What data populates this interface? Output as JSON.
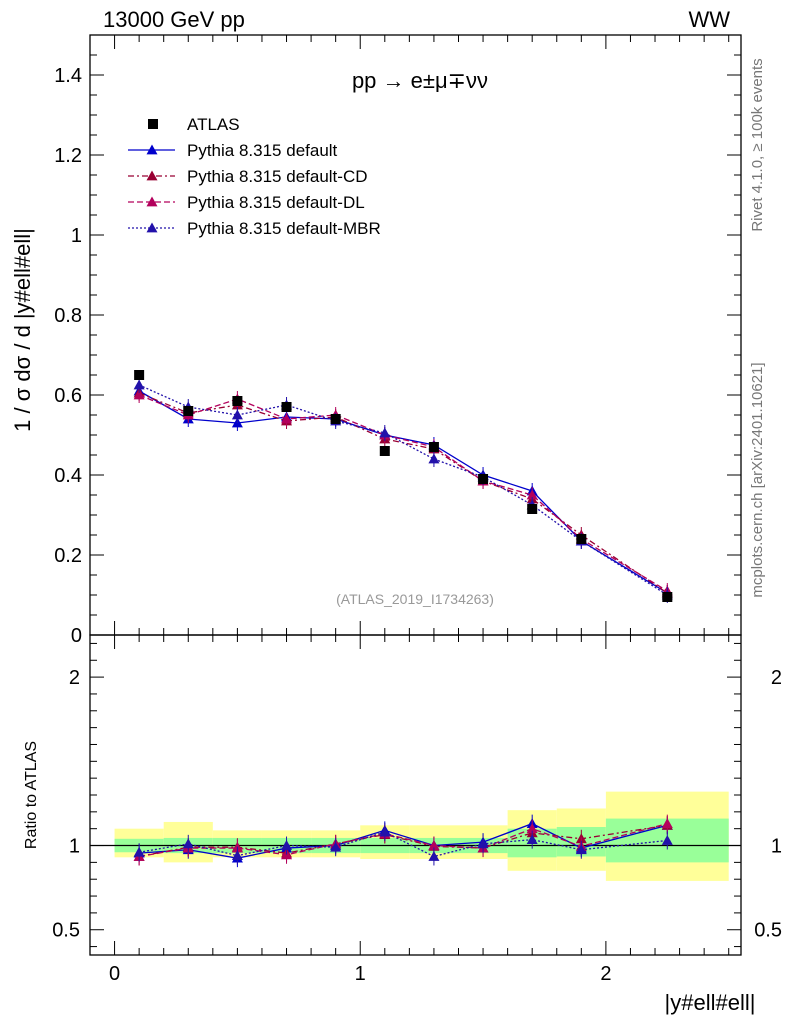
{
  "header": {
    "energy_label": "13000 GeV pp",
    "process_tag": "WW"
  },
  "side_labels": {
    "rivet": "Rivet 4.1.0, ≥ 100k events",
    "mcplots": "mcplots.cern.ch [arXiv:2401.10621]"
  },
  "colors": {
    "data": "#000000",
    "default": "#0000cc",
    "cd": "#990033",
    "dl": "#b3005c",
    "mbr": "#2211aa",
    "band_inner": "#99ff99",
    "band_outer": "#ffff99"
  },
  "chart_data": [
    {
      "type": "line",
      "title": "pp → e±μ∓νν",
      "ylabel": "1 / σ dσ / d |y#ell#ell|",
      "xlabel": "|y#ell#ell|",
      "analysis_tag": "(ATLAS_2019_I1734263)",
      "xlim": [
        -0.1,
        2.55
      ],
      "ylim": [
        0,
        1.5
      ],
      "yticks": [
        0,
        0.2,
        0.4,
        0.6,
        0.8,
        1,
        1.2,
        1.4
      ],
      "ytick_labels": [
        "0",
        "0.2",
        "0.4",
        "0.6",
        "0.8",
        "1",
        "1.2",
        "1.4"
      ],
      "x": [
        0.1,
        0.3,
        0.5,
        0.7,
        0.9,
        1.1,
        1.3,
        1.5,
        1.7,
        1.9,
        2.25
      ],
      "x_bins": [
        [
          0,
          0.2
        ],
        [
          0.2,
          0.4
        ],
        [
          0.4,
          0.6
        ],
        [
          0.6,
          0.8
        ],
        [
          0.8,
          1.0
        ],
        [
          1.0,
          1.2
        ],
        [
          1.2,
          1.4
        ],
        [
          1.4,
          1.6
        ],
        [
          1.6,
          1.8
        ],
        [
          1.8,
          2.0
        ],
        [
          2.0,
          2.5
        ]
      ],
      "legend": [
        {
          "key": "data",
          "label": "ATLAS"
        },
        {
          "key": "default",
          "label": "Pythia 8.315 default"
        },
        {
          "key": "cd",
          "label": "Pythia 8.315 default-CD"
        },
        {
          "key": "dl",
          "label": "Pythia 8.315 default-DL"
        },
        {
          "key": "mbr",
          "label": "Pythia 8.315 default-MBR"
        }
      ],
      "data_values": [
        0.65,
        0.56,
        0.585,
        0.57,
        0.54,
        0.46,
        0.47,
        0.39,
        0.315,
        0.24,
        0.095
      ],
      "series": [
        {
          "key": "default",
          "name": "Pythia 8.315 default",
          "values": [
            0.61,
            0.54,
            0.53,
            0.545,
            0.54,
            0.5,
            0.475,
            0.4,
            0.36,
            0.235,
            0.105
          ]
        },
        {
          "key": "cd",
          "name": "Pythia 8.315 default-CD",
          "values": [
            0.605,
            0.555,
            0.575,
            0.535,
            0.545,
            0.49,
            0.465,
            0.385,
            0.34,
            0.25,
            0.105
          ]
        },
        {
          "key": "dl",
          "name": "Pythia 8.315 default-DL",
          "values": [
            0.6,
            0.55,
            0.59,
            0.54,
            0.55,
            0.5,
            0.47,
            0.385,
            0.35,
            0.24,
            0.11
          ]
        },
        {
          "key": "mbr",
          "name": "Pythia 8.315 default-MBR",
          "values": [
            0.625,
            0.57,
            0.55,
            0.575,
            0.535,
            0.505,
            0.44,
            0.395,
            0.325,
            0.235,
            0.1
          ]
        }
      ]
    },
    {
      "type": "line",
      "title": "",
      "ylabel": "Ratio to ATLAS",
      "xlabel": "|y#ell#ell|",
      "xlim": [
        -0.1,
        2.55
      ],
      "ylim": [
        0.35,
        2.25
      ],
      "yticks": [
        0.5,
        1,
        2
      ],
      "ytick_labels": [
        "0.5",
        "1",
        "2"
      ],
      "xticks": [
        0,
        1,
        2
      ],
      "xtick_labels": [
        "0",
        "1",
        "2"
      ],
      "x": [
        0.1,
        0.3,
        0.5,
        0.7,
        0.9,
        1.1,
        1.3,
        1.5,
        1.7,
        1.9,
        2.25
      ],
      "band_inner": [
        [
          0.96,
          1.04
        ],
        [
          0.955,
          1.045
        ],
        [
          0.955,
          1.045
        ],
        [
          0.955,
          1.045
        ],
        [
          0.955,
          1.045
        ],
        [
          0.955,
          1.045
        ],
        [
          0.955,
          1.045
        ],
        [
          0.955,
          1.045
        ],
        [
          0.93,
          1.1
        ],
        [
          0.935,
          1.11
        ],
        [
          0.9,
          1.16
        ]
      ],
      "band_outer": [
        [
          0.93,
          1.1
        ],
        [
          0.9,
          1.14
        ],
        [
          0.93,
          1.09
        ],
        [
          0.93,
          1.09
        ],
        [
          0.93,
          1.09
        ],
        [
          0.92,
          1.12
        ],
        [
          0.92,
          1.12
        ],
        [
          0.92,
          1.12
        ],
        [
          0.85,
          1.21
        ],
        [
          0.85,
          1.22
        ],
        [
          0.79,
          1.32
        ]
      ],
      "series": [
        {
          "key": "default",
          "name": "Pythia 8.315 default",
          "values": [
            0.955,
            0.975,
            0.925,
            0.985,
            1.0,
            1.09,
            1.0,
            1.02,
            1.13,
            0.985,
            1.12
          ]
        },
        {
          "key": "cd",
          "name": "Pythia 8.315 default-CD",
          "values": [
            0.935,
            0.99,
            0.99,
            0.955,
            1.01,
            1.065,
            0.995,
            0.985,
            1.075,
            1.04,
            1.12
          ]
        },
        {
          "key": "dl",
          "name": "Pythia 8.315 default-DL",
          "values": [
            0.935,
            0.985,
            0.985,
            0.945,
            1.01,
            1.07,
            1.0,
            0.985,
            1.1,
            0.995,
            1.13
          ]
        },
        {
          "key": "mbr",
          "name": "Pythia 8.315 default-MBR",
          "values": [
            0.96,
            1.01,
            0.94,
            1.0,
            0.99,
            1.08,
            0.935,
            1.01,
            1.035,
            0.975,
            1.03
          ]
        }
      ]
    }
  ]
}
